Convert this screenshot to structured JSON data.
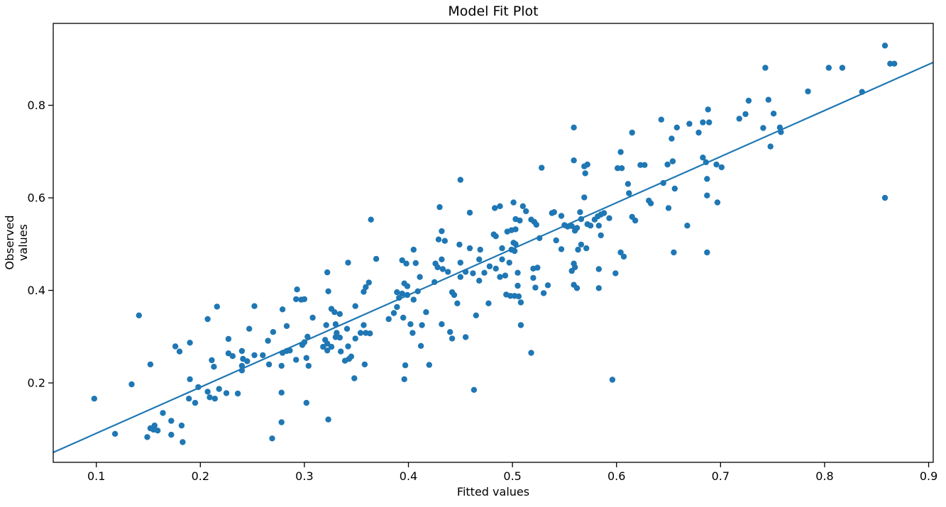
{
  "chart_data": {
    "type": "scatter",
    "title": "Model Fit Plot",
    "xlabel": "Fitted values",
    "ylabel": "Observed values",
    "xlim": [
      0.0586,
      0.9044
    ],
    "ylim": [
      0.0284,
      0.977
    ],
    "grid": false,
    "legend": null,
    "marker_color": "#1f77b4",
    "line_color": "#1f77b4",
    "axis_color": "#000000",
    "xticks": {
      "values": [
        0.1,
        0.2,
        0.3,
        0.4,
        0.5,
        0.6,
        0.7,
        0.8,
        0.9
      ],
      "labels": [
        "0.1",
        "0.2",
        "0.3",
        "0.4",
        "0.5",
        "0.6",
        "0.7",
        "0.8",
        "0.9"
      ]
    },
    "yticks": {
      "values": [
        0.2,
        0.4,
        0.6,
        0.8
      ],
      "labels": [
        "0.2",
        "0.4",
        "0.6",
        "0.8"
      ]
    },
    "fit_line": {
      "x1": 0.0586,
      "y1": 0.0498,
      "x2": 0.9044,
      "y2": 0.8928,
      "slope": 0.997,
      "intercept": -0.009
    },
    "points": [
      [
        0.207,
        0.338
      ],
      [
        0.247,
        0.317
      ],
      [
        0.227,
        0.295
      ],
      [
        0.265,
        0.291
      ],
      [
        0.176,
        0.279
      ],
      [
        0.19,
        0.287
      ],
      [
        0.18,
        0.268
      ],
      [
        0.227,
        0.264
      ],
      [
        0.231,
        0.258
      ],
      [
        0.24,
        0.269
      ],
      [
        0.241,
        0.252
      ],
      [
        0.245,
        0.247
      ],
      [
        0.252,
        0.26
      ],
      [
        0.26,
        0.26
      ],
      [
        0.266,
        0.24
      ],
      [
        0.24,
        0.237
      ],
      [
        0.24,
        0.227
      ],
      [
        0.211,
        0.249
      ],
      [
        0.213,
        0.235
      ],
      [
        0.152,
        0.24
      ],
      [
        0.134,
        0.197
      ],
      [
        0.098,
        0.166
      ],
      [
        0.19,
        0.208
      ],
      [
        0.198,
        0.191
      ],
      [
        0.207,
        0.181
      ],
      [
        0.209,
        0.169
      ],
      [
        0.214,
        0.166
      ],
      [
        0.218,
        0.187
      ],
      [
        0.225,
        0.178
      ],
      [
        0.236,
        0.177
      ],
      [
        0.189,
        0.166
      ],
      [
        0.195,
        0.157
      ],
      [
        0.164,
        0.135
      ],
      [
        0.172,
        0.118
      ],
      [
        0.182,
        0.108
      ],
      [
        0.156,
        0.108
      ],
      [
        0.155,
        0.099
      ],
      [
        0.159,
        0.097
      ],
      [
        0.152,
        0.102
      ],
      [
        0.149,
        0.083
      ],
      [
        0.172,
        0.088
      ],
      [
        0.183,
        0.072
      ],
      [
        0.118,
        0.09
      ],
      [
        0.269,
        0.08
      ],
      [
        0.141,
        0.346
      ],
      [
        0.216,
        0.365
      ],
      [
        0.252,
        0.366
      ],
      [
        0.308,
        0.341
      ],
      [
        0.283,
        0.323
      ],
      [
        0.27,
        0.31
      ],
      [
        0.321,
        0.325
      ],
      [
        0.33,
        0.327
      ],
      [
        0.331,
        0.308
      ],
      [
        0.334,
        0.298
      ],
      [
        0.341,
        0.317
      ],
      [
        0.357,
        0.325
      ],
      [
        0.354,
        0.308
      ],
      [
        0.359,
        0.308
      ],
      [
        0.363,
        0.307
      ],
      [
        0.349,
        0.296
      ],
      [
        0.303,
        0.3
      ],
      [
        0.3,
        0.288
      ],
      [
        0.298,
        0.282
      ],
      [
        0.32,
        0.293
      ],
      [
        0.322,
        0.285
      ],
      [
        0.318,
        0.278
      ],
      [
        0.326,
        0.278
      ],
      [
        0.322,
        0.27
      ],
      [
        0.33,
        0.299
      ],
      [
        0.335,
        0.268
      ],
      [
        0.342,
        0.279
      ],
      [
        0.345,
        0.257
      ],
      [
        0.339,
        0.248
      ],
      [
        0.343,
        0.252
      ],
      [
        0.358,
        0.24
      ],
      [
        0.348,
        0.21
      ],
      [
        0.279,
        0.265
      ],
      [
        0.283,
        0.269
      ],
      [
        0.286,
        0.27
      ],
      [
        0.292,
        0.25
      ],
      [
        0.302,
        0.254
      ],
      [
        0.278,
        0.237
      ],
      [
        0.304,
        0.237
      ],
      [
        0.381,
        0.338
      ],
      [
        0.395,
        0.341
      ],
      [
        0.402,
        0.327
      ],
      [
        0.413,
        0.325
      ],
      [
        0.404,
        0.308
      ],
      [
        0.412,
        0.28
      ],
      [
        0.397,
        0.238
      ],
      [
        0.396,
        0.208
      ],
      [
        0.42,
        0.239
      ],
      [
        0.432,
        0.327
      ],
      [
        0.44,
        0.31
      ],
      [
        0.442,
        0.296
      ],
      [
        0.455,
        0.299
      ],
      [
        0.465,
        0.346
      ],
      [
        0.463,
        0.185
      ],
      [
        0.278,
        0.179
      ],
      [
        0.302,
        0.157
      ],
      [
        0.323,
        0.121
      ],
      [
        0.278,
        0.115
      ],
      [
        0.45,
        0.639
      ],
      [
        0.43,
        0.58
      ],
      [
        0.459,
        0.568
      ],
      [
        0.364,
        0.553
      ],
      [
        0.432,
        0.528
      ],
      [
        0.429,
        0.51
      ],
      [
        0.435,
        0.507
      ],
      [
        0.449,
        0.499
      ],
      [
        0.459,
        0.491
      ],
      [
        0.469,
        0.488
      ],
      [
        0.405,
        0.488
      ],
      [
        0.369,
        0.468
      ],
      [
        0.342,
        0.46
      ],
      [
        0.394,
        0.465
      ],
      [
        0.398,
        0.458
      ],
      [
        0.407,
        0.459
      ],
      [
        0.426,
        0.458
      ],
      [
        0.428,
        0.45
      ],
      [
        0.432,
        0.467
      ],
      [
        0.433,
        0.446
      ],
      [
        0.438,
        0.44
      ],
      [
        0.45,
        0.46
      ],
      [
        0.468,
        0.467
      ],
      [
        0.411,
        0.429
      ],
      [
        0.45,
        0.429
      ],
      [
        0.455,
        0.44
      ],
      [
        0.462,
        0.437
      ],
      [
        0.468,
        0.421
      ],
      [
        0.473,
        0.438
      ],
      [
        0.478,
        0.452
      ],
      [
        0.322,
        0.439
      ],
      [
        0.323,
        0.398
      ],
      [
        0.362,
        0.417
      ],
      [
        0.359,
        0.407
      ],
      [
        0.357,
        0.397
      ],
      [
        0.396,
        0.415
      ],
      [
        0.399,
        0.409
      ],
      [
        0.389,
        0.396
      ],
      [
        0.394,
        0.393
      ],
      [
        0.391,
        0.384
      ],
      [
        0.399,
        0.39
      ],
      [
        0.409,
        0.398
      ],
      [
        0.405,
        0.38
      ],
      [
        0.425,
        0.418
      ],
      [
        0.442,
        0.396
      ],
      [
        0.444,
        0.39
      ],
      [
        0.447,
        0.372
      ],
      [
        0.293,
        0.402
      ],
      [
        0.292,
        0.381
      ],
      [
        0.297,
        0.38
      ],
      [
        0.3,
        0.381
      ],
      [
        0.279,
        0.359
      ],
      [
        0.326,
        0.36
      ],
      [
        0.329,
        0.353
      ],
      [
        0.334,
        0.349
      ],
      [
        0.349,
        0.366
      ],
      [
        0.386,
        0.351
      ],
      [
        0.389,
        0.364
      ],
      [
        0.417,
        0.353
      ],
      [
        0.477,
        0.372
      ],
      [
        0.482,
        0.521
      ],
      [
        0.484,
        0.517
      ],
      [
        0.57,
        0.653
      ],
      [
        0.601,
        0.664
      ],
      [
        0.605,
        0.664
      ],
      [
        0.611,
        0.63
      ],
      [
        0.645,
        0.632
      ],
      [
        0.656,
        0.62
      ],
      [
        0.612,
        0.61
      ],
      [
        0.687,
        0.641
      ],
      [
        0.687,
        0.605
      ],
      [
        0.631,
        0.594
      ],
      [
        0.633,
        0.588
      ],
      [
        0.569,
        0.601
      ],
      [
        0.501,
        0.59
      ],
      [
        0.51,
        0.582
      ],
      [
        0.513,
        0.571
      ],
      [
        0.488,
        0.582
      ],
      [
        0.483,
        0.578
      ],
      [
        0.538,
        0.567
      ],
      [
        0.54,
        0.569
      ],
      [
        0.547,
        0.561
      ],
      [
        0.503,
        0.554
      ],
      [
        0.507,
        0.551
      ],
      [
        0.518,
        0.553
      ],
      [
        0.521,
        0.548
      ],
      [
        0.523,
        0.542
      ],
      [
        0.565,
        0.569
      ],
      [
        0.566,
        0.554
      ],
      [
        0.55,
        0.541
      ],
      [
        0.553,
        0.538
      ],
      [
        0.557,
        0.539
      ],
      [
        0.562,
        0.535
      ],
      [
        0.56,
        0.529
      ],
      [
        0.572,
        0.543
      ],
      [
        0.575,
        0.54
      ],
      [
        0.579,
        0.553
      ],
      [
        0.582,
        0.56
      ],
      [
        0.585,
        0.564
      ],
      [
        0.588,
        0.567
      ],
      [
        0.593,
        0.556
      ],
      [
        0.583,
        0.54
      ],
      [
        0.495,
        0.527
      ],
      [
        0.499,
        0.53
      ],
      [
        0.503,
        0.532
      ],
      [
        0.501,
        0.503
      ],
      [
        0.503,
        0.5
      ],
      [
        0.499,
        0.488
      ],
      [
        0.502,
        0.485
      ],
      [
        0.49,
        0.491
      ],
      [
        0.526,
        0.513
      ],
      [
        0.542,
        0.508
      ],
      [
        0.547,
        0.489
      ],
      [
        0.563,
        0.488
      ],
      [
        0.566,
        0.499
      ],
      [
        0.571,
        0.491
      ],
      [
        0.585,
        0.519
      ],
      [
        0.604,
        0.482
      ],
      [
        0.607,
        0.473
      ],
      [
        0.615,
        0.559
      ],
      [
        0.618,
        0.551
      ],
      [
        0.65,
        0.578
      ],
      [
        0.655,
        0.482
      ],
      [
        0.668,
        0.54
      ],
      [
        0.687,
        0.482
      ],
      [
        0.49,
        0.467
      ],
      [
        0.497,
        0.46
      ],
      [
        0.484,
        0.447
      ],
      [
        0.493,
        0.432
      ],
      [
        0.505,
        0.438
      ],
      [
        0.52,
        0.447
      ],
      [
        0.524,
        0.449
      ],
      [
        0.534,
        0.411
      ],
      [
        0.53,
        0.394
      ],
      [
        0.557,
        0.442
      ],
      [
        0.559,
        0.458
      ],
      [
        0.56,
        0.45
      ],
      [
        0.583,
        0.446
      ],
      [
        0.599,
        0.437
      ],
      [
        0.488,
        0.429
      ],
      [
        0.505,
        0.41
      ],
      [
        0.494,
        0.391
      ],
      [
        0.498,
        0.388
      ],
      [
        0.502,
        0.388
      ],
      [
        0.506,
        0.387
      ],
      [
        0.508,
        0.374
      ],
      [
        0.52,
        0.427
      ],
      [
        0.522,
        0.406
      ],
      [
        0.559,
        0.412
      ],
      [
        0.562,
        0.405
      ],
      [
        0.583,
        0.405
      ],
      [
        0.559,
        0.752
      ],
      [
        0.615,
        0.741
      ],
      [
        0.643,
        0.769
      ],
      [
        0.653,
        0.728
      ],
      [
        0.658,
        0.752
      ],
      [
        0.67,
        0.76
      ],
      [
        0.679,
        0.741
      ],
      [
        0.683,
        0.763
      ],
      [
        0.689,
        0.763
      ],
      [
        0.688,
        0.791
      ],
      [
        0.604,
        0.699
      ],
      [
        0.559,
        0.681
      ],
      [
        0.569,
        0.668
      ],
      [
        0.572,
        0.672
      ],
      [
        0.623,
        0.671
      ],
      [
        0.627,
        0.671
      ],
      [
        0.649,
        0.672
      ],
      [
        0.654,
        0.679
      ],
      [
        0.683,
        0.687
      ],
      [
        0.686,
        0.677
      ],
      [
        0.528,
        0.665
      ],
      [
        0.858,
        0.929
      ],
      [
        0.863,
        0.89
      ],
      [
        0.867,
        0.89
      ],
      [
        0.743,
        0.881
      ],
      [
        0.804,
        0.881
      ],
      [
        0.817,
        0.881
      ],
      [
        0.784,
        0.83
      ],
      [
        0.836,
        0.829
      ],
      [
        0.727,
        0.81
      ],
      [
        0.746,
        0.812
      ],
      [
        0.724,
        0.781
      ],
      [
        0.718,
        0.771
      ],
      [
        0.751,
        0.782
      ],
      [
        0.741,
        0.751
      ],
      [
        0.757,
        0.752
      ],
      [
        0.758,
        0.742
      ],
      [
        0.748,
        0.711
      ],
      [
        0.696,
        0.672
      ],
      [
        0.701,
        0.666
      ],
      [
        0.697,
        0.59
      ],
      [
        0.858,
        0.6
      ],
      [
        0.508,
        0.325
      ],
      [
        0.518,
        0.265
      ],
      [
        0.596,
        0.207
      ]
    ]
  }
}
